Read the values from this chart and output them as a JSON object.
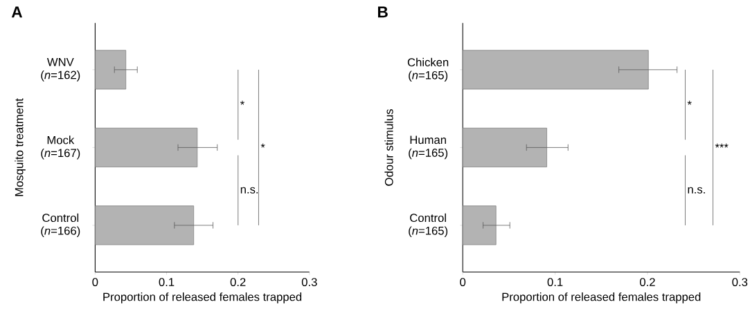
{
  "chart_data": [
    {
      "type": "bar",
      "orientation": "horizontal",
      "title": "A",
      "xlabel": "Proportion of released females trapped",
      "ylabel": "Mosquito treatment",
      "categories": [
        "WNV (*n*=162)",
        "Mock (*n*=167)",
        "Control (*n*=166)"
      ],
      "values": [
        0.043,
        0.143,
        0.138
      ],
      "errors": [
        [
          0.027,
          0.059
        ],
        [
          0.116,
          0.171
        ],
        [
          0.111,
          0.165
        ]
      ],
      "color": "#b3b3b3",
      "xlim": [
        0,
        0.3
      ],
      "xticks": [
        0,
        0.1,
        0.2,
        0.3
      ],
      "annotations": [
        "*",
        "n.s.",
        "*"
      ]
    },
    {
      "type": "bar",
      "orientation": "horizontal",
      "title": "B",
      "xlabel": "Proportion of released females trapped",
      "ylabel": "Odour stimulus",
      "categories": [
        "Chicken (*n*=165)",
        "Human (*n*=165)",
        "Control (*n*=165)"
      ],
      "values": [
        0.201,
        0.091,
        0.036
      ],
      "errors": [
        [
          0.169,
          0.232
        ],
        [
          0.069,
          0.114
        ],
        [
          0.022,
          0.051
        ]
      ],
      "color": "#b3b3b3",
      "xlim": [
        0,
        0.3
      ],
      "xticks": [
        0,
        0.1,
        0.2,
        0.3
      ],
      "annotations": [
        "*",
        "n.s.",
        "***"
      ]
    }
  ]
}
